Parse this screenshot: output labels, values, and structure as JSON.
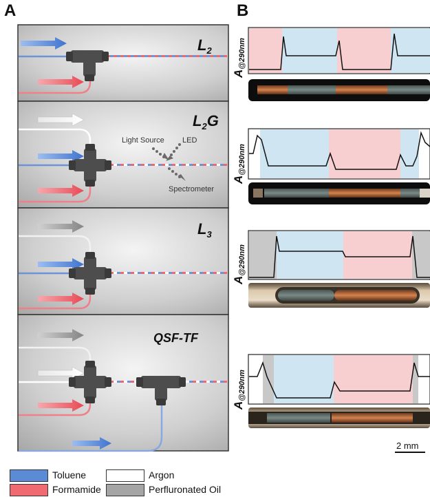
{
  "figure": {
    "panel_a_letter": "A",
    "panel_b_letter": "B"
  },
  "panels_a": [
    {
      "label_main": "L",
      "label_sub": "2",
      "label_suffix": ""
    },
    {
      "label_main": "L",
      "label_sub": "2",
      "label_suffix": "G"
    },
    {
      "label_main": "L",
      "label_sub": "3",
      "label_suffix": ""
    },
    {
      "label_main": "QSF-TF",
      "label_sub": "",
      "label_suffix": ""
    }
  ],
  "panel_a_annotations": {
    "light_source": "Light Source",
    "led": "LED",
    "spectrometer": "Spectrometer"
  },
  "panel_b": {
    "ylabel_main": "A",
    "ylabel_sub": "@290nm",
    "scale_bar": "2 mm"
  },
  "legend": [
    {
      "label": "Toluene",
      "color": "#5b8bd6"
    },
    {
      "label": "Argon",
      "color": "#ffffff"
    },
    {
      "label": "Formamide",
      "color": "#f06a72"
    },
    {
      "label": "Perfluronated Oil",
      "color": "#a5a5a5"
    }
  ],
  "colors": {
    "toluene": "#5b8bd6",
    "formamide": "#f06a72",
    "argon": "#ffffff",
    "oil": "#a5a5a5",
    "toluene_band": "#cfe6f2",
    "formamide_band": "#f7cfd1",
    "oil_band": "#c8c8c8"
  }
}
